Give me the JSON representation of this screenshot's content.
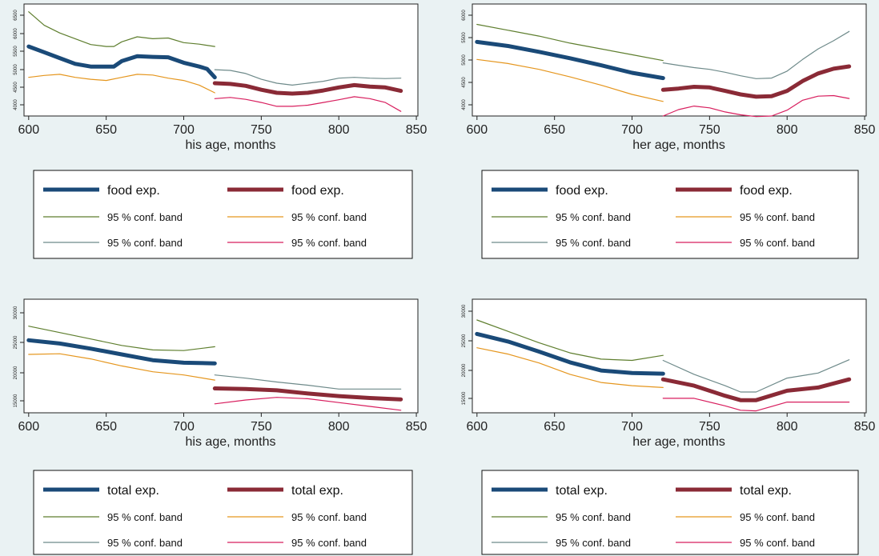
{
  "colors": {
    "background": "#eaf2f3",
    "plot_bg": "#ffffff",
    "before": "#1a4a78",
    "after": "#8a2a36",
    "band_upper_before": "#5e7e2e",
    "band_lower_before": "#e5961e",
    "band_upper_after": "#6e8a8a",
    "band_lower_after": "#d81e5e"
  },
  "chart_data": [
    {
      "type": "line",
      "xlabel": "his age, months",
      "x_ticks": [
        "600",
        "650",
        "700",
        "750",
        "800",
        "850"
      ],
      "xlim": [
        597,
        851
      ],
      "ylim": [
        3900,
        6800
      ],
      "y_ticks": [
        "4000",
        "4500",
        "5000",
        "5500",
        "6000",
        "6500"
      ],
      "series": [
        {
          "name": "food exp.",
          "role": "main",
          "segment": "before",
          "x": [
            600,
            610,
            620,
            630,
            640,
            650,
            655,
            660,
            670,
            680,
            690,
            700,
            710,
            715,
            720
          ],
          "y": [
            5700,
            5550,
            5400,
            5250,
            5180,
            5180,
            5180,
            5320,
            5450,
            5430,
            5420,
            5280,
            5180,
            5120,
            4900
          ]
        },
        {
          "name": "95 % conf. band",
          "role": "upper",
          "segment": "before",
          "x": [
            600,
            610,
            620,
            630,
            640,
            650,
            655,
            660,
            670,
            680,
            690,
            700,
            710,
            720
          ],
          "y": [
            6600,
            6250,
            6050,
            5900,
            5750,
            5700,
            5700,
            5820,
            5950,
            5900,
            5920,
            5800,
            5760,
            5700
          ]
        },
        {
          "name": "95 % conf. band",
          "role": "lower",
          "segment": "before",
          "x": [
            600,
            610,
            620,
            630,
            640,
            650,
            660,
            670,
            680,
            690,
            700,
            710,
            720
          ],
          "y": [
            4900,
            4950,
            4980,
            4900,
            4850,
            4820,
            4900,
            4980,
            4960,
            4880,
            4820,
            4700,
            4500
          ]
        },
        {
          "name": "food exp.",
          "role": "main",
          "segment": "after",
          "x": [
            720,
            730,
            740,
            750,
            760,
            770,
            780,
            790,
            800,
            810,
            820,
            830,
            840
          ],
          "y": [
            4750,
            4730,
            4680,
            4580,
            4500,
            4480,
            4500,
            4560,
            4640,
            4700,
            4660,
            4640,
            4550
          ]
        },
        {
          "name": "95 % conf. band",
          "role": "upper",
          "segment": "after",
          "x": [
            720,
            730,
            740,
            750,
            760,
            770,
            780,
            790,
            800,
            810,
            820,
            830,
            840
          ],
          "y": [
            5100,
            5080,
            5000,
            4850,
            4750,
            4700,
            4750,
            4800,
            4880,
            4900,
            4880,
            4870,
            4880
          ]
        },
        {
          "name": "95 % conf. band",
          "role": "lower",
          "segment": "after",
          "x": [
            720,
            730,
            740,
            750,
            760,
            770,
            780,
            790,
            800,
            810,
            820,
            830,
            840
          ],
          "y": [
            4350,
            4380,
            4330,
            4250,
            4150,
            4150,
            4180,
            4250,
            4320,
            4400,
            4350,
            4250,
            4020
          ]
        }
      ]
    },
    {
      "type": "line",
      "xlabel": "her age, months",
      "x_ticks": [
        "600",
        "650",
        "700",
        "750",
        "800",
        "850"
      ],
      "xlim": [
        597,
        851
      ],
      "ylim": [
        4230,
        6150
      ],
      "y_ticks": [
        "4000",
        "4500",
        "5000",
        "5500",
        "6000"
      ],
      "series": [
        {
          "name": "food exp.",
          "role": "main",
          "segment": "before",
          "x": [
            600,
            620,
            640,
            660,
            680,
            700,
            720
          ],
          "y": [
            5500,
            5430,
            5330,
            5220,
            5100,
            4970,
            4880
          ]
        },
        {
          "name": "95 % conf. band",
          "role": "upper",
          "segment": "before",
          "x": [
            600,
            620,
            640,
            660,
            680,
            700,
            720
          ],
          "y": [
            5800,
            5700,
            5600,
            5480,
            5380,
            5280,
            5180
          ]
        },
        {
          "name": "95 % conf. band",
          "role": "lower",
          "segment": "before",
          "x": [
            600,
            620,
            640,
            660,
            680,
            700,
            720
          ],
          "y": [
            5200,
            5130,
            5030,
            4900,
            4760,
            4600,
            4480
          ]
        },
        {
          "name": "food exp.",
          "role": "main",
          "segment": "after",
          "x": [
            720,
            730,
            740,
            750,
            760,
            770,
            780,
            790,
            800,
            810,
            820,
            830,
            840
          ],
          "y": [
            4680,
            4700,
            4730,
            4720,
            4660,
            4600,
            4560,
            4570,
            4660,
            4830,
            4960,
            5040,
            5080
          ]
        },
        {
          "name": "95 % conf. band",
          "role": "upper",
          "segment": "after",
          "x": [
            720,
            730,
            740,
            750,
            760,
            770,
            780,
            790,
            800,
            810,
            820,
            830,
            840
          ],
          "y": [
            5140,
            5100,
            5060,
            5030,
            4980,
            4920,
            4870,
            4880,
            5000,
            5200,
            5380,
            5520,
            5680
          ]
        },
        {
          "name": "95 % conf. band",
          "role": "lower",
          "segment": "after",
          "x": [
            720,
            730,
            740,
            750,
            760,
            770,
            780,
            790,
            800,
            810,
            820,
            830,
            840
          ],
          "y": [
            4230,
            4340,
            4400,
            4370,
            4300,
            4250,
            4220,
            4230,
            4330,
            4500,
            4570,
            4580,
            4530
          ]
        }
      ]
    },
    {
      "type": "line",
      "xlabel": "his age, months",
      "x_ticks": [
        "600",
        "650",
        "700",
        "750",
        "800",
        "850"
      ],
      "xlim": [
        597,
        851
      ],
      "ylim": [
        14000,
        31700
      ],
      "y_ticks": [
        "15000",
        "20000",
        "25000",
        "30000"
      ],
      "series": [
        {
          "name": "total exp.",
          "role": "main",
          "segment": "before",
          "x": [
            600,
            620,
            640,
            660,
            680,
            700,
            720
          ],
          "y": [
            25300,
            24800,
            24000,
            23100,
            22200,
            21800,
            21700
          ]
        },
        {
          "name": "95 % conf. band",
          "role": "upper",
          "segment": "before",
          "x": [
            600,
            620,
            640,
            660,
            680,
            700,
            720
          ],
          "y": [
            27500,
            26500,
            25500,
            24500,
            23800,
            23700,
            24300
          ]
        },
        {
          "name": "95 % conf. band",
          "role": "lower",
          "segment": "before",
          "x": [
            600,
            620,
            640,
            660,
            680,
            700,
            720
          ],
          "y": [
            23100,
            23200,
            22400,
            21300,
            20400,
            19900,
            19100
          ]
        },
        {
          "name": "total exp.",
          "role": "main",
          "segment": "after",
          "x": [
            720,
            740,
            760,
            780,
            800,
            820,
            840
          ],
          "y": [
            17800,
            17700,
            17500,
            17000,
            16600,
            16300,
            16100
          ]
        },
        {
          "name": "95 % conf. band",
          "role": "upper",
          "segment": "after",
          "x": [
            720,
            740,
            760,
            780,
            800,
            820,
            840
          ],
          "y": [
            19900,
            19400,
            18800,
            18300,
            17700,
            17700,
            17700
          ]
        },
        {
          "name": "95 % conf. band",
          "role": "lower",
          "segment": "after",
          "x": [
            720,
            740,
            760,
            780,
            800,
            820,
            840
          ],
          "y": [
            15400,
            16000,
            16400,
            16200,
            15600,
            15000,
            14400
          ]
        }
      ]
    },
    {
      "type": "line",
      "xlabel": "her age, months",
      "x_ticks": [
        "600",
        "650",
        "700",
        "750",
        "800",
        "850"
      ],
      "xlim": [
        597,
        851
      ],
      "ylim": [
        13500,
        31500
      ],
      "y_ticks": [
        "15000",
        "20000",
        "25000",
        "30000"
      ],
      "series": [
        {
          "name": "total exp.",
          "role": "main",
          "segment": "before",
          "x": [
            600,
            620,
            640,
            660,
            680,
            700,
            720
          ],
          "y": [
            26000,
            24800,
            23200,
            21500,
            20200,
            19800,
            19700
          ]
        },
        {
          "name": "95 % conf. band",
          "role": "upper",
          "segment": "before",
          "x": [
            600,
            620,
            640,
            660,
            680,
            700,
            720
          ],
          "y": [
            28200,
            26400,
            24600,
            23000,
            22000,
            21800,
            22600
          ]
        },
        {
          "name": "95 % conf. band",
          "role": "lower",
          "segment": "before",
          "x": [
            600,
            620,
            640,
            660,
            680,
            700,
            720
          ],
          "y": [
            23800,
            22800,
            21400,
            19600,
            18300,
            17800,
            17500
          ]
        },
        {
          "name": "total exp.",
          "role": "main",
          "segment": "after",
          "x": [
            720,
            740,
            760,
            770,
            780,
            800,
            820,
            840
          ],
          "y": [
            18800,
            17800,
            16200,
            15500,
            15500,
            17000,
            17500,
            18800
          ]
        },
        {
          "name": "95 % conf. band",
          "role": "upper",
          "segment": "after",
          "x": [
            720,
            740,
            760,
            770,
            780,
            800,
            820,
            840
          ],
          "y": [
            21800,
            19600,
            17800,
            16800,
            16800,
            19000,
            19800,
            21900
          ]
        },
        {
          "name": "95 % conf. band",
          "role": "lower",
          "segment": "after",
          "x": [
            720,
            740,
            760,
            770,
            780,
            800,
            820,
            840
          ],
          "y": [
            15800,
            15800,
            14600,
            13900,
            13800,
            15200,
            15200,
            15200
          ]
        }
      ]
    }
  ],
  "legends": [
    {
      "rows": [
        {
          "left": "food exp.",
          "right": "food exp."
        },
        {
          "left": "95 % conf. band",
          "right": "95 % conf. band"
        },
        {
          "left": "95 % conf. band",
          "right": "95 % conf. band"
        }
      ]
    },
    {
      "rows": [
        {
          "left": "food exp.",
          "right": "food exp."
        },
        {
          "left": "95 % conf. band",
          "right": "95 % conf. band"
        },
        {
          "left": "95 % conf. band",
          "right": "95 % conf. band"
        }
      ]
    },
    {
      "rows": [
        {
          "left": "total exp.",
          "right": "total exp."
        },
        {
          "left": "95 % conf. band",
          "right": "95 % conf. band"
        },
        {
          "left": "95 % conf. band",
          "right": "95 % conf. band"
        }
      ]
    },
    {
      "rows": [
        {
          "left": "total exp.",
          "right": "total exp."
        },
        {
          "left": "95 % conf. band",
          "right": "95 % conf. band"
        },
        {
          "left": "95 % conf. band",
          "right": "95 % conf. band"
        }
      ]
    }
  ]
}
